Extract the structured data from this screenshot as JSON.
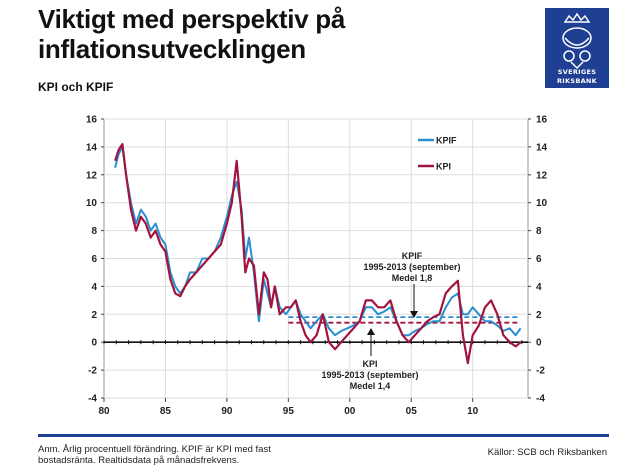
{
  "header": {
    "title": "Viktigt med perspektiv på inflationsutvecklingen",
    "subtitle": "KPI och KPIF"
  },
  "logo": {
    "lettering": "SVERIGES RIKSBANK"
  },
  "footer": {
    "note": "Anm. Årlig procentuell förändring. KPIF är KPI med fast bostadsränta. Realtidsdata på månadsfrekvens.",
    "source": "Källor: SCB och Riksbanken"
  },
  "colors": {
    "kpif": "#2a8ed0",
    "kpi": "#a3143c",
    "brand": "#1f3f93"
  },
  "chart_data": {
    "type": "line",
    "title": "",
    "xlabel": "",
    "ylabel": "",
    "xlim": [
      1980,
      2014.5
    ],
    "ylim": [
      -4,
      16
    ],
    "x_ticks": [
      {
        "value": 1980,
        "label": "80"
      },
      {
        "value": 1985,
        "label": "85"
      },
      {
        "value": 1990,
        "label": "90"
      },
      {
        "value": 1995,
        "label": "95"
      },
      {
        "value": 2000,
        "label": "00"
      },
      {
        "value": 2005,
        "label": "05"
      },
      {
        "value": 2010,
        "label": "10"
      }
    ],
    "y_ticks": [
      -4,
      -2,
      0,
      2,
      4,
      6,
      8,
      10,
      12,
      14,
      16
    ],
    "grid": true,
    "legend": [
      {
        "key": "kpif",
        "label": "KPIF"
      },
      {
        "key": "kpi",
        "label": "KPI"
      }
    ],
    "series": [
      {
        "key": "kpif",
        "name": "KPIF",
        "points": [
          [
            1980.9,
            12.5
          ],
          [
            1981.2,
            13.5
          ],
          [
            1981.5,
            14.0
          ],
          [
            1981.8,
            12.0
          ],
          [
            1982.2,
            10.0
          ],
          [
            1982.6,
            8.5
          ],
          [
            1983.0,
            9.5
          ],
          [
            1983.4,
            9.0
          ],
          [
            1983.8,
            8.0
          ],
          [
            1984.2,
            8.5
          ],
          [
            1984.6,
            7.5
          ],
          [
            1985.0,
            7.0
          ],
          [
            1985.4,
            5.0
          ],
          [
            1985.8,
            4.0
          ],
          [
            1986.2,
            3.5
          ],
          [
            1986.6,
            4.0
          ],
          [
            1987.0,
            5.0
          ],
          [
            1987.5,
            5.0
          ],
          [
            1988.0,
            6.0
          ],
          [
            1988.5,
            6.0
          ],
          [
            1989.0,
            6.5
          ],
          [
            1989.5,
            7.5
          ],
          [
            1990.0,
            9.0
          ],
          [
            1990.4,
            10.5
          ],
          [
            1990.8,
            11.5
          ],
          [
            1991.2,
            9.5
          ],
          [
            1991.5,
            6.0
          ],
          [
            1991.8,
            7.5
          ],
          [
            1992.2,
            5.0
          ],
          [
            1992.6,
            1.5
          ],
          [
            1993.0,
            4.5
          ],
          [
            1993.3,
            3.5
          ],
          [
            1993.6,
            2.5
          ],
          [
            1993.9,
            4.0
          ],
          [
            1994.3,
            2.5
          ],
          [
            1994.8,
            2.0
          ],
          [
            1995.2,
            2.5
          ],
          [
            1995.6,
            3.0
          ],
          [
            1996.0,
            2.0
          ],
          [
            1996.4,
            1.5
          ],
          [
            1996.8,
            1.0
          ],
          [
            1997.3,
            1.5
          ],
          [
            1997.8,
            2.0
          ],
          [
            1998.3,
            1.0
          ],
          [
            1998.8,
            0.5
          ],
          [
            1999.3,
            0.8
          ],
          [
            1999.8,
            1.0
          ],
          [
            2000.3,
            1.2
          ],
          [
            2000.8,
            1.5
          ],
          [
            2001.3,
            2.5
          ],
          [
            2001.8,
            2.5
          ],
          [
            2002.3,
            2.0
          ],
          [
            2002.8,
            2.2
          ],
          [
            2003.3,
            2.5
          ],
          [
            2003.8,
            1.5
          ],
          [
            2004.3,
            0.5
          ],
          [
            2004.8,
            0.5
          ],
          [
            2005.3,
            0.8
          ],
          [
            2005.8,
            1.0
          ],
          [
            2006.3,
            1.3
          ],
          [
            2006.8,
            1.5
          ],
          [
            2007.3,
            1.5
          ],
          [
            2007.8,
            2.5
          ],
          [
            2008.3,
            3.2
          ],
          [
            2008.8,
            3.5
          ],
          [
            2009.2,
            2.0
          ],
          [
            2009.6,
            2.0
          ],
          [
            2010.0,
            2.5
          ],
          [
            2010.5,
            2.0
          ],
          [
            2011.0,
            1.5
          ],
          [
            2011.5,
            1.5
          ],
          [
            2012.0,
            1.2
          ],
          [
            2012.5,
            0.8
          ],
          [
            2013.0,
            1.0
          ],
          [
            2013.5,
            0.5
          ],
          [
            2013.9,
            1.0
          ]
        ]
      },
      {
        "key": "kpi",
        "name": "KPI",
        "points": [
          [
            1980.9,
            13.0
          ],
          [
            1981.2,
            13.8
          ],
          [
            1981.5,
            14.2
          ],
          [
            1981.8,
            12.0
          ],
          [
            1982.2,
            9.5
          ],
          [
            1982.6,
            8.0
          ],
          [
            1983.0,
            9.0
          ],
          [
            1983.4,
            8.5
          ],
          [
            1983.8,
            7.5
          ],
          [
            1984.2,
            8.0
          ],
          [
            1984.6,
            7.0
          ],
          [
            1985.0,
            6.5
          ],
          [
            1985.4,
            4.5
          ],
          [
            1985.8,
            3.5
          ],
          [
            1986.2,
            3.3
          ],
          [
            1986.6,
            4.0
          ],
          [
            1987.0,
            4.5
          ],
          [
            1987.5,
            5.0
          ],
          [
            1988.0,
            5.5
          ],
          [
            1988.5,
            6.0
          ],
          [
            1989.0,
            6.5
          ],
          [
            1989.5,
            7.0
          ],
          [
            1990.0,
            8.5
          ],
          [
            1990.4,
            10.0
          ],
          [
            1990.8,
            13.0
          ],
          [
            1991.2,
            9.0
          ],
          [
            1991.5,
            5.0
          ],
          [
            1991.8,
            6.0
          ],
          [
            1992.2,
            5.5
          ],
          [
            1992.6,
            2.0
          ],
          [
            1993.0,
            5.0
          ],
          [
            1993.3,
            4.5
          ],
          [
            1993.6,
            2.5
          ],
          [
            1993.9,
            4.0
          ],
          [
            1994.3,
            2.0
          ],
          [
            1994.8,
            2.5
          ],
          [
            1995.2,
            2.5
          ],
          [
            1995.6,
            3.0
          ],
          [
            1996.0,
            1.5
          ],
          [
            1996.4,
            0.5
          ],
          [
            1996.8,
            0.0
          ],
          [
            1997.3,
            0.5
          ],
          [
            1997.8,
            2.0
          ],
          [
            1998.3,
            0.0
          ],
          [
            1998.8,
            -0.5
          ],
          [
            1999.3,
            0.0
          ],
          [
            1999.8,
            0.5
          ],
          [
            2000.3,
            1.0
          ],
          [
            2000.8,
            1.5
          ],
          [
            2001.3,
            3.0
          ],
          [
            2001.8,
            3.0
          ],
          [
            2002.3,
            2.5
          ],
          [
            2002.8,
            2.5
          ],
          [
            2003.3,
            3.0
          ],
          [
            2003.8,
            1.5
          ],
          [
            2004.3,
            0.5
          ],
          [
            2004.8,
            0.0
          ],
          [
            2005.3,
            0.5
          ],
          [
            2005.8,
            1.0
          ],
          [
            2006.3,
            1.5
          ],
          [
            2006.8,
            1.8
          ],
          [
            2007.3,
            2.0
          ],
          [
            2007.8,
            3.5
          ],
          [
            2008.3,
            4.0
          ],
          [
            2008.8,
            4.4
          ],
          [
            2009.2,
            0.5
          ],
          [
            2009.6,
            -1.5
          ],
          [
            2010.0,
            0.5
          ],
          [
            2010.5,
            1.2
          ],
          [
            2011.0,
            2.5
          ],
          [
            2011.5,
            3.0
          ],
          [
            2012.0,
            2.0
          ],
          [
            2012.5,
            0.5
          ],
          [
            2013.0,
            0.0
          ],
          [
            2013.5,
            -0.3
          ],
          [
            2013.9,
            0.0
          ]
        ]
      }
    ],
    "reference_lines": [
      {
        "key": "kpif",
        "x_range": [
          1995,
          2013.7
        ],
        "value": 1.8,
        "label": "KPIF 1995-2013 (september) Medel 1,8"
      },
      {
        "key": "kpi",
        "x_range": [
          1995,
          2013.7
        ],
        "value": 1.4,
        "label": "KPI 1995-2013 (september) Medel 1,4"
      }
    ],
    "annotations": [
      {
        "for": "kpif",
        "lines": [
          "KPIF",
          "1995-2013 (september)",
          "Medel 1,8"
        ]
      },
      {
        "for": "kpi",
        "lines": [
          "KPI",
          "1995-2013 (september)",
          "Medel 1,4"
        ]
      }
    ]
  }
}
